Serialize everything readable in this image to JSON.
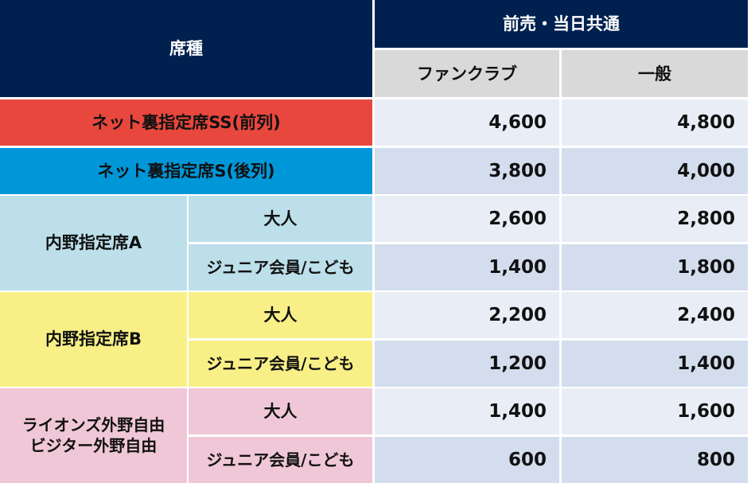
{
  "header": {
    "seat": "席種",
    "price_group": "前売・当日共通",
    "columns": [
      "ファンクラブ",
      "一般"
    ]
  },
  "rows": [
    {
      "seat": "ネット裏指定席SS(前列)",
      "prices": [
        "4,600",
        "4,800"
      ]
    },
    {
      "seat": "ネット裏指定席S(後列)",
      "prices": [
        "3,800",
        "4,000"
      ]
    }
  ],
  "groups": [
    {
      "seat_lines": [
        "内野指定席A"
      ],
      "sub": [
        {
          "type": "大人",
          "prices": [
            "2,600",
            "2,800"
          ]
        },
        {
          "type": "ジュニア会員/こども",
          "prices": [
            "1,400",
            "1,800"
          ]
        }
      ]
    },
    {
      "seat_lines": [
        "内野指定席B"
      ],
      "sub": [
        {
          "type": "大人",
          "prices": [
            "2,200",
            "2,400"
          ]
        },
        {
          "type": "ジュニア会員/こども",
          "prices": [
            "1,200",
            "1,400"
          ]
        }
      ]
    },
    {
      "seat_lines": [
        "ライオンズ外野自由",
        "ビジター外野自由"
      ],
      "sub": [
        {
          "type": "大人",
          "prices": [
            "1,400",
            "1,600"
          ]
        },
        {
          "type": "ジュニア会員/こども",
          "prices": [
            "600",
            "800"
          ]
        }
      ]
    }
  ]
}
